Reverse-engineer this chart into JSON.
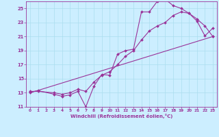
{
  "title": "",
  "xlabel": "Windchill (Refroidissement éolien,°C)",
  "ylabel": "",
  "bg_color": "#cceeff",
  "line_color": "#993399",
  "xlim": [
    -0.5,
    23.5
  ],
  "ylim": [
    11,
    26
  ],
  "xticks": [
    0,
    1,
    2,
    3,
    4,
    5,
    6,
    7,
    8,
    9,
    10,
    11,
    12,
    13,
    14,
    15,
    16,
    17,
    18,
    19,
    20,
    21,
    22,
    23
  ],
  "yticks": [
    11,
    13,
    15,
    17,
    19,
    21,
    23,
    25
  ],
  "grid_color": "#aaddee",
  "line1_x": [
    0,
    1,
    3,
    4,
    5,
    6,
    7,
    8,
    9,
    10,
    11,
    12,
    13,
    14,
    15,
    16,
    17,
    18,
    19,
    20,
    21,
    22,
    23
  ],
  "line1_y": [
    13.1,
    13.3,
    12.8,
    12.5,
    12.7,
    13.2,
    11.0,
    13.9,
    15.6,
    15.5,
    18.5,
    19.0,
    19.2,
    24.5,
    24.5,
    26.0,
    26.3,
    25.4,
    25.0,
    24.3,
    23.2,
    21.1,
    22.2
  ],
  "line2_x": [
    0,
    1,
    3,
    4,
    5,
    6,
    7,
    8,
    9,
    10,
    11,
    12,
    13,
    14,
    15,
    16,
    17,
    18,
    19,
    20,
    21,
    22,
    23
  ],
  "line2_y": [
    13.2,
    13.2,
    13.0,
    12.8,
    13.0,
    13.5,
    13.2,
    14.5,
    15.5,
    16.0,
    17.0,
    18.2,
    19.0,
    20.5,
    21.8,
    22.5,
    23.0,
    24.0,
    24.5,
    24.3,
    23.5,
    22.5,
    21.0
  ],
  "line3_x": [
    0,
    23
  ],
  "line3_y": [
    13.0,
    21.0
  ]
}
